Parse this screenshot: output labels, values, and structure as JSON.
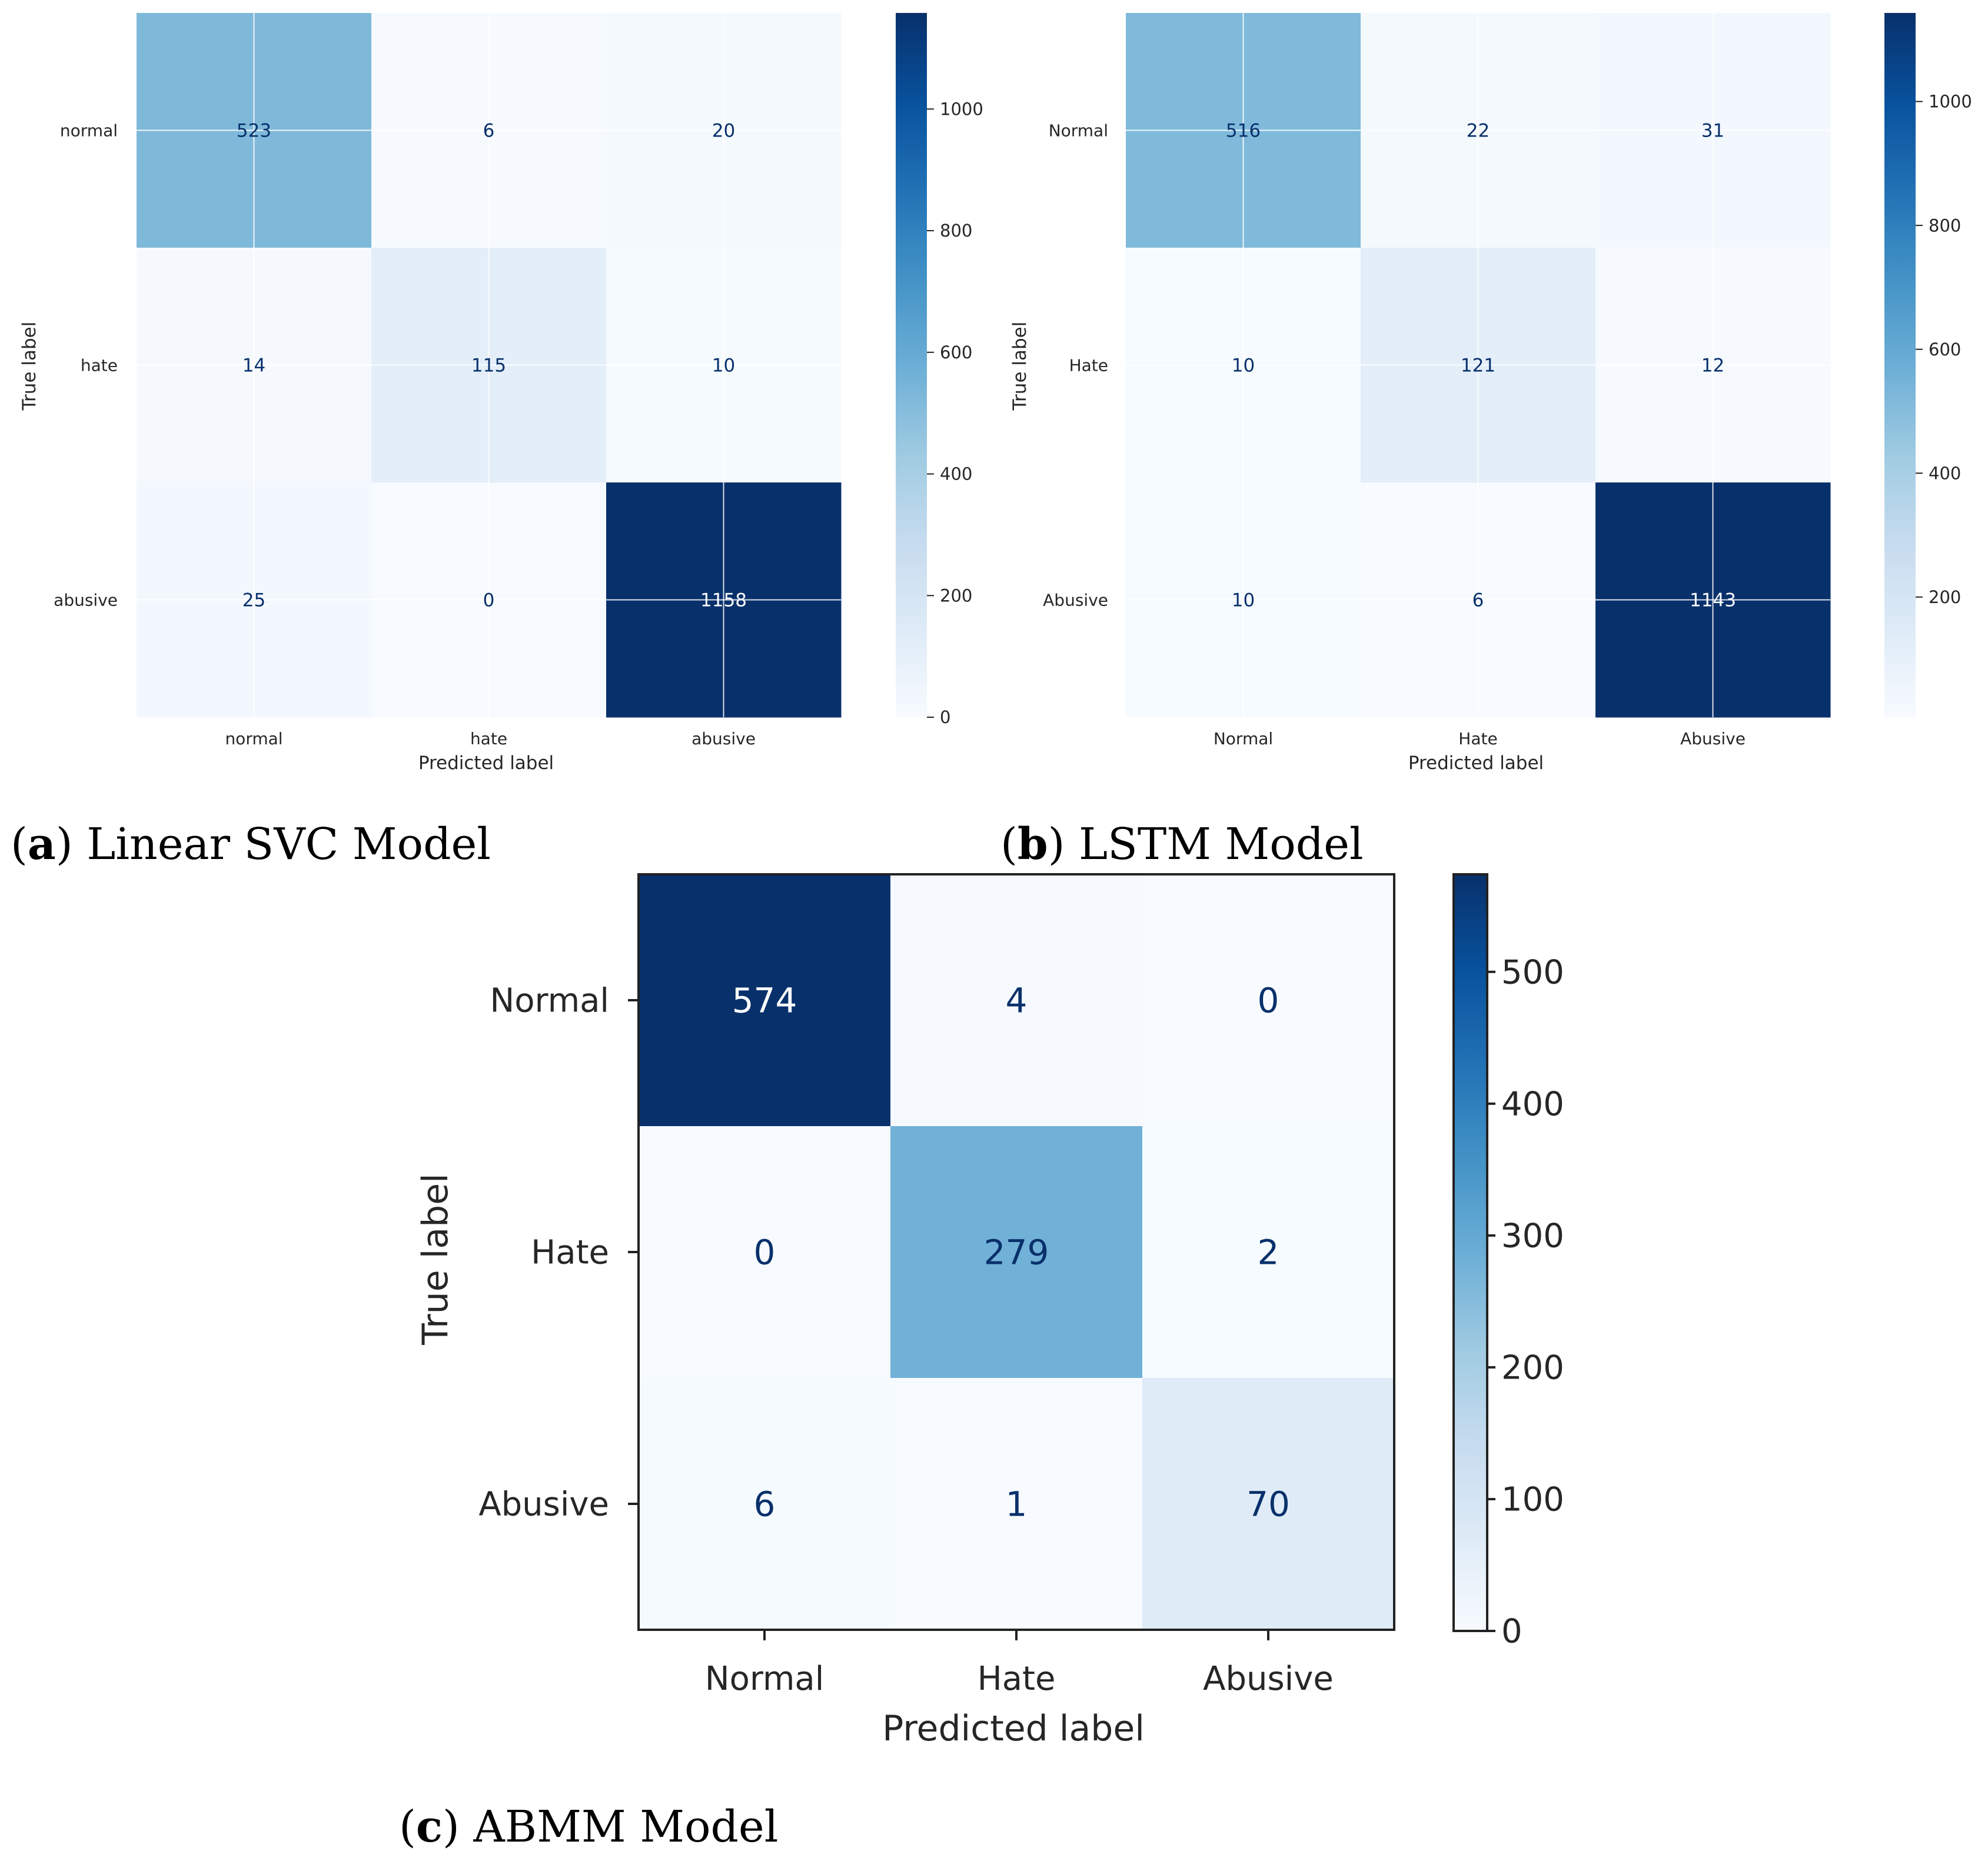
{
  "chart_data": [
    {
      "type": "heatmap",
      "subtype": "confusion-matrix",
      "caption_letter": "a",
      "caption_text": "Linear SVC Model",
      "row_labels": [
        "normal",
        "hate",
        "abusive"
      ],
      "col_labels": [
        "normal",
        "hate",
        "abusive"
      ],
      "values": [
        [
          523,
          6,
          20
        ],
        [
          14,
          115,
          10
        ],
        [
          25,
          0,
          1158
        ]
      ],
      "xlabel": "Predicted label",
      "ylabel": "True label",
      "vmin": 0,
      "vmax": 1158,
      "colorbar_ticks": [
        0,
        200,
        400,
        600,
        800,
        1000
      ],
      "colormap": "Blues",
      "grid": true
    },
    {
      "type": "heatmap",
      "subtype": "confusion-matrix",
      "caption_letter": "b",
      "caption_text": "LSTM Model",
      "row_labels": [
        "Normal",
        "Hate",
        "Abusive"
      ],
      "col_labels": [
        "Normal",
        "Hate",
        "Abusive"
      ],
      "values": [
        [
          516,
          22,
          31
        ],
        [
          10,
          121,
          12
        ],
        [
          10,
          6,
          1143
        ]
      ],
      "xlabel": "Predicted label",
      "ylabel": "True label",
      "vmin": 6,
      "vmax": 1143,
      "colorbar_ticks": [
        200,
        400,
        600,
        800,
        1000
      ],
      "colormap": "Blues",
      "grid": true
    },
    {
      "type": "heatmap",
      "subtype": "confusion-matrix",
      "caption_letter": "c",
      "caption_text": "ABMM Model",
      "row_labels": [
        "Normal",
        "Hate",
        "Abusive"
      ],
      "col_labels": [
        "Normal",
        "Hate",
        "Abusive"
      ],
      "values": [
        [
          574,
          4,
          0
        ],
        [
          0,
          279,
          2
        ],
        [
          6,
          1,
          70
        ]
      ],
      "xlabel": "Predicted label",
      "ylabel": "True label",
      "vmin": 0,
      "vmax": 574,
      "colorbar_ticks": [
        0,
        100,
        200,
        300,
        400,
        500
      ],
      "colormap": "Blues",
      "grid": false
    }
  ],
  "colors": {
    "text_dark_cell": "#08306b",
    "text_light_cell": "#ffffff",
    "grid_line": "#ffffff",
    "axis_text": "#262626"
  }
}
